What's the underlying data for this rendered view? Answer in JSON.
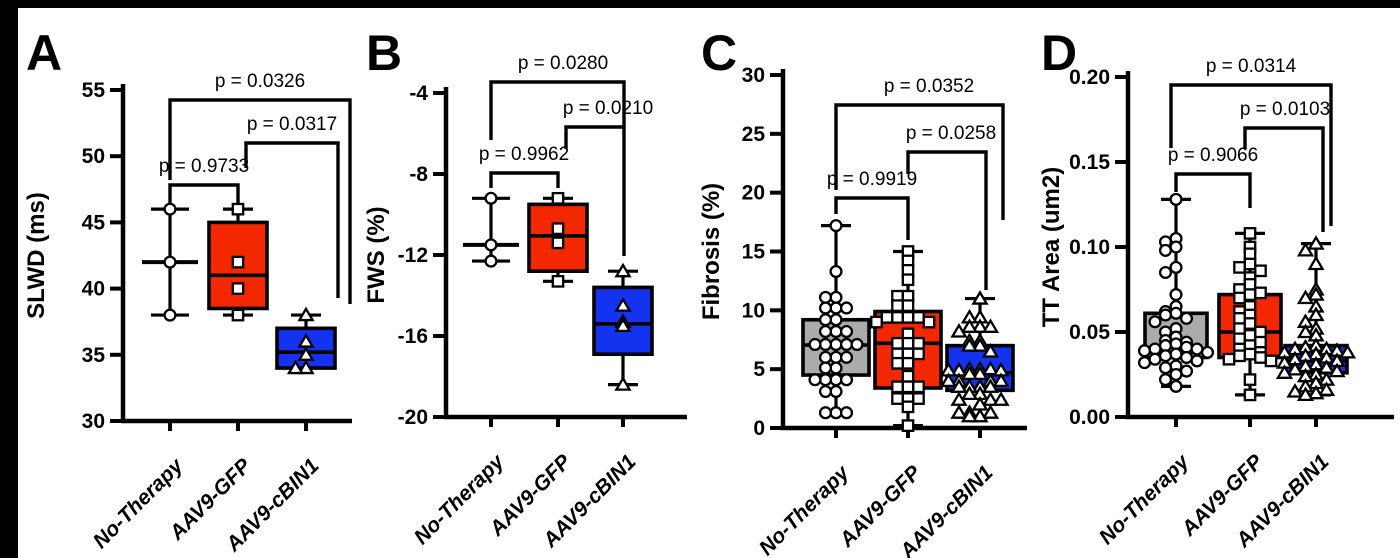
{
  "figure": {
    "background": "#ffffff",
    "frame_color": "#000000",
    "group_labels": [
      "No-Therapy",
      "AAV9-GFP",
      "AAV9-cBIN1"
    ],
    "colors": {
      "no_therapy": "#ABABAB",
      "aav9_gfp": "#F32800",
      "aav9_cbin1": "#1433F0",
      "marker_fill": "#FFFFFF",
      "line": "#000000"
    }
  },
  "chart_data": [
    {
      "type": "box",
      "letter": "A",
      "ylabel": "SLWD (ms)",
      "ylim": [
        30,
        55
      ],
      "yticks": [
        "55",
        "50",
        "45",
        "40",
        "35",
        "30"
      ],
      "groups": [
        {
          "label": "No-Therapy",
          "marker": "circle",
          "color": "#ABABAB",
          "box": null,
          "median": 42,
          "whisker_lo": 38,
          "whisker_hi": 46,
          "points": [
            46,
            42,
            38
          ]
        },
        {
          "label": "AAV9-GFP",
          "marker": "square",
          "color": "#F32800",
          "box": {
            "q1": 38.5,
            "median": 41,
            "q3": 45,
            "lo": 38,
            "hi": 46
          },
          "points": [
            46,
            42,
            40,
            38
          ]
        },
        {
          "label": "AAV9-cBIN1",
          "marker": "triangle",
          "color": "#1433F0",
          "box": {
            "q1": 34,
            "median": 35.2,
            "q3": 37,
            "lo": 34,
            "hi": 38
          },
          "points": [
            38,
            36,
            35,
            34,
            34
          ]
        }
      ],
      "comparisons": [
        {
          "between": [
            "No-Therapy",
            "AAV9-cBIN1"
          ],
          "p_label": "p = 0.0326"
        },
        {
          "between": [
            "AAV9-GFP",
            "AAV9-cBIN1"
          ],
          "p_label": "p = 0.0317"
        },
        {
          "between": [
            "No-Therapy",
            "AAV9-GFP"
          ],
          "p_label": "p = 0.9733"
        }
      ]
    },
    {
      "type": "box",
      "letter": "B",
      "ylabel": "FWS (%)",
      "ylim": [
        -20,
        -4
      ],
      "yticks": [
        "-4",
        "-8",
        "-12",
        "-16",
        "-20"
      ],
      "groups": [
        {
          "label": "No-Therapy",
          "marker": "circle",
          "color": "#ABABAB",
          "box": null,
          "median": -11.5,
          "whisker_lo": -12.3,
          "whisker_hi": -9.2,
          "points": [
            -9.2,
            -11.5,
            -12.3
          ]
        },
        {
          "label": "AAV9-GFP",
          "marker": "square",
          "color": "#F32800",
          "box": {
            "q1": -12.8,
            "median": -11.05,
            "q3": -9.5,
            "lo": -13.3,
            "hi": -9.2
          },
          "points": [
            -9.2,
            -10.7,
            -11.4,
            -13.3
          ]
        },
        {
          "label": "AAV9-cBIN1",
          "marker": "triangle",
          "color": "#1433F0",
          "box": {
            "q1": -16.9,
            "median": -15.4,
            "q3": -13.6,
            "lo": -18.4,
            "hi": -12.8
          },
          "points": [
            -12.8,
            -14.5,
            -15.3,
            -15.5,
            -18.4
          ]
        }
      ],
      "comparisons": [
        {
          "between": [
            "No-Therapy",
            "AAV9-cBIN1"
          ],
          "p_label": "p = 0.0280"
        },
        {
          "between": [
            "AAV9-GFP",
            "AAV9-cBIN1"
          ],
          "p_label": "p = 0.0210"
        },
        {
          "between": [
            "No-Therapy",
            "AAV9-GFP"
          ],
          "p_label": "p = 0.9962"
        }
      ]
    },
    {
      "type": "box",
      "letter": "C",
      "ylabel": "Fibrosis (%)",
      "ylim": [
        0,
        30
      ],
      "yticks": [
        "30",
        "25",
        "20",
        "15",
        "10",
        "5",
        "0"
      ],
      "groups": [
        {
          "label": "No-Therapy",
          "marker": "circle",
          "color": "#ABABAB",
          "box": {
            "q1": 4.5,
            "median": 7.05,
            "q3": 9.2,
            "lo": 1.3,
            "hi": 17.2
          },
          "points": [
            17.2,
            13.3,
            11.1,
            11.1,
            10.2,
            10.2,
            10.2,
            9.2,
            9.2,
            8.2,
            8.2,
            8.2,
            7.1,
            7.1,
            7.1,
            7.1,
            7.1,
            6.0,
            6.0,
            6.0,
            5.1,
            5.1,
            4.1,
            4.1,
            4.1,
            4.1,
            3.1,
            3.1,
            1.3,
            1.3,
            1.3
          ]
        },
        {
          "label": "AAV9-GFP",
          "marker": "square",
          "color": "#F32800",
          "box": {
            "q1": 3.4,
            "median": 7.2,
            "q3": 9.9,
            "lo": 0.2,
            "hi": 15
          },
          "points": [
            15,
            14.2,
            13.4,
            12.6,
            11.2,
            11.2,
            10.4,
            10.4,
            9.4,
            9.4,
            9.4,
            9.4,
            9.0,
            9.0,
            8.0,
            7.2,
            7.2,
            7.2,
            6.3,
            6.3,
            6.3,
            5.5,
            5.5,
            4.4,
            3.5,
            3.5,
            3.5,
            2.5,
            2.5,
            2.5,
            1.8,
            0.2
          ]
        },
        {
          "label": "AAV9-cBIN1",
          "marker": "triangle",
          "color": "#1433F0",
          "box": {
            "q1": 3.2,
            "median": 4.7,
            "q3": 7.0,
            "lo": 1.0,
            "hi": 11
          },
          "points": [
            11,
            9.4,
            9.4,
            8.6,
            8.6,
            8.6,
            8.2,
            7.4,
            7.4,
            7.0,
            7.0,
            6.5,
            5.0,
            5.0,
            5.0,
            4.9,
            4.9,
            4.9,
            4.6,
            4.6,
            4.0,
            4.0,
            4.0,
            4.0,
            3.5,
            3.5,
            3.5,
            3.5,
            2.9,
            2.9,
            2.4,
            2.4,
            2.4,
            2.0,
            1.3,
            1.3,
            1.3,
            1.0,
            1.0
          ]
        }
      ],
      "comparisons": [
        {
          "between": [
            "No-Therapy",
            "AAV9-cBIN1"
          ],
          "p_label": "p = 0.0352"
        },
        {
          "between": [
            "AAV9-GFP",
            "AAV9-cBIN1"
          ],
          "p_label": "p = 0.0258"
        },
        {
          "between": [
            "No-Therapy",
            "AAV9-GFP"
          ],
          "p_label": "p = 0.9919"
        }
      ]
    },
    {
      "type": "box",
      "letter": "D",
      "ylabel": "TT Area (um2)",
      "ylim": [
        0,
        0.2
      ],
      "yticks": [
        "0.20",
        "0.15",
        "0.10",
        "0.05",
        "0.00"
      ],
      "groups": [
        {
          "label": "No-Therapy",
          "marker": "circle",
          "color": "#ABABAB",
          "box": {
            "q1": 0.035,
            "median": 0.038,
            "q3": 0.061,
            "lo": 0.018,
            "hi": 0.128
          },
          "points": [
            0.128,
            0.105,
            0.103,
            0.1,
            0.098,
            0.088,
            0.085,
            0.072,
            0.065,
            0.062,
            0.061,
            0.06,
            0.058,
            0.056,
            0.052,
            0.05,
            0.047,
            0.045,
            0.044,
            0.043,
            0.042,
            0.041,
            0.04,
            0.04,
            0.039,
            0.038,
            0.037,
            0.036,
            0.035,
            0.034,
            0.033,
            0.032,
            0.03,
            0.029,
            0.027,
            0.025,
            0.022,
            0.018
          ]
        },
        {
          "label": "AAV9-GFP",
          "marker": "square",
          "color": "#F32800",
          "box": {
            "q1": 0.035,
            "median": 0.05,
            "q3": 0.072,
            "lo": 0.013,
            "hi": 0.108
          },
          "points": [
            0.108,
            0.1,
            0.096,
            0.09,
            0.088,
            0.086,
            0.082,
            0.078,
            0.075,
            0.073,
            0.072,
            0.07,
            0.065,
            0.062,
            0.06,
            0.058,
            0.055,
            0.052,
            0.05,
            0.048,
            0.046,
            0.044,
            0.042,
            0.04,
            0.038,
            0.037,
            0.036,
            0.035,
            0.034,
            0.033,
            0.022,
            0.013
          ]
        },
        {
          "label": "AAV9-cBIN1",
          "marker": "triangle",
          "color": "#1433F0",
          "box": {
            "q1": 0.026,
            "median": 0.033,
            "q3": 0.042,
            "lo": 0.013,
            "hi": 0.102
          },
          "points": [
            0.102,
            0.098,
            0.09,
            0.075,
            0.072,
            0.07,
            0.065,
            0.06,
            0.056,
            0.052,
            0.05,
            0.048,
            0.042,
            0.041,
            0.04,
            0.04,
            0.039,
            0.038,
            0.038,
            0.037,
            0.036,
            0.035,
            0.034,
            0.033,
            0.032,
            0.031,
            0.03,
            0.029,
            0.028,
            0.027,
            0.026,
            0.025,
            0.024,
            0.022,
            0.02,
            0.018,
            0.016,
            0.015,
            0.014,
            0.013
          ]
        }
      ],
      "comparisons": [
        {
          "between": [
            "No-Therapy",
            "AAV9-cBIN1"
          ],
          "p_label": "p = 0.0314"
        },
        {
          "between": [
            "AAV9-GFP",
            "AAV9-cBIN1"
          ],
          "p_label": "p = 0.0103"
        },
        {
          "between": [
            "No-Therapy",
            "AAV9-GFP"
          ],
          "p_label": "p = 0.9066"
        }
      ]
    }
  ]
}
